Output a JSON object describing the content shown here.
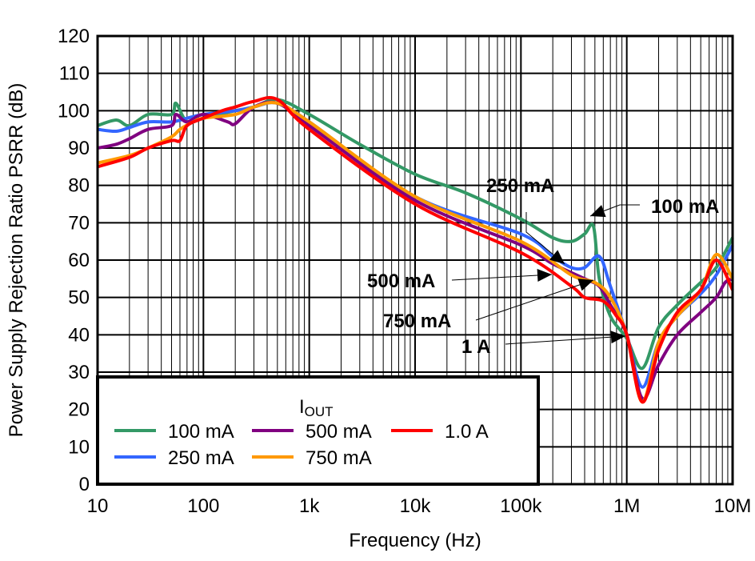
{
  "chart_data": {
    "type": "line",
    "title": "",
    "xlabel": "Frequency (Hz)",
    "ylabel": "Power Supply Rejection Ratio PSRR (dB)",
    "xscale": "log",
    "xlim": [
      10,
      10000000
    ],
    "ylim": [
      0,
      120
    ],
    "grid": true,
    "xticks": [
      10,
      100,
      1000,
      10000,
      100000,
      1000000,
      10000000
    ],
    "xtick_labels": [
      "10",
      "100",
      "1k",
      "10k",
      "100k",
      "1M",
      "10M"
    ],
    "yticks": [
      0,
      10,
      20,
      30,
      40,
      50,
      60,
      70,
      80,
      90,
      100,
      110,
      120
    ],
    "ytick_labels": [
      "0",
      "10",
      "20",
      "30",
      "40",
      "50",
      "60",
      "70",
      "80",
      "90",
      "100",
      "110",
      "120"
    ],
    "legend": {
      "title_main": "I",
      "title_sub": "OUT",
      "placement": "bottom-left"
    },
    "series": [
      {
        "name": "100 mA",
        "color": "#339966",
        "x": [
          10,
          15,
          20,
          30,
          50,
          55,
          70,
          100,
          200,
          300,
          500,
          1000,
          3000,
          10000,
          30000,
          100000,
          200000,
          300000,
          400000,
          485000,
          550000,
          700000,
          1000000,
          1400000,
          2000000,
          3000000,
          5000000,
          7000000,
          10000000
        ],
        "y": [
          96,
          97.5,
          96,
          99,
          99,
          102,
          97,
          98,
          100,
          101,
          103,
          99,
          91,
          83,
          78,
          71,
          66,
          65,
          67,
          69,
          55,
          45,
          39,
          31,
          42,
          48,
          54,
          58,
          66
        ]
      },
      {
        "name": "250 mA",
        "color": "#3366ff",
        "x": [
          10,
          15,
          20,
          30,
          50,
          70,
          100,
          200,
          300,
          500,
          1000,
          10000,
          100000,
          200000,
          300000,
          400000,
          550000,
          700000,
          1000000,
          1400000,
          2000000,
          3000000,
          5000000,
          7000000,
          10000000
        ],
        "y": [
          95,
          94.5,
          95.5,
          97,
          97,
          98,
          99,
          100,
          101,
          102,
          97,
          77,
          67,
          61,
          58,
          58,
          61,
          53,
          40,
          26,
          38,
          45,
          51,
          56,
          64
        ]
      },
      {
        "name": "500 mA",
        "color": "#800080",
        "x": [
          10,
          15,
          20,
          30,
          50,
          55,
          70,
          100,
          170,
          200,
          300,
          500,
          1000,
          10000,
          100000,
          200000,
          400000,
          550000,
          700000,
          1000000,
          1400000,
          2000000,
          3000000,
          5000000,
          7000000,
          8500000,
          10000000
        ],
        "y": [
          90,
          91,
          92.5,
          95,
          96,
          99,
          97,
          99,
          97,
          96.5,
          101,
          102,
          96,
          76,
          64,
          59,
          55,
          53,
          48,
          40,
          23,
          32,
          40,
          46,
          50,
          54,
          55
        ]
      },
      {
        "name": "750 mA",
        "color": "#ff9900",
        "x": [
          10,
          20,
          30,
          50,
          60,
          80,
          100,
          200,
          300,
          500,
          1000,
          10000,
          100000,
          300000,
          500000,
          700000,
          1000000,
          1400000,
          2000000,
          3000000,
          5000000,
          7000000,
          10000000
        ],
        "y": [
          86,
          88,
          90,
          93,
          95,
          97,
          98,
          99,
          101,
          102,
          97,
          77,
          65,
          56,
          54,
          50,
          40,
          22,
          38,
          45,
          52,
          61.5,
          55
        ]
      },
      {
        "name": "1.0 A",
        "color": "#ff0000",
        "x": [
          10,
          20,
          30,
          50,
          60,
          70,
          100,
          150,
          200,
          300,
          500,
          1000,
          10000,
          100000,
          300000,
          400000,
          600000,
          800000,
          1000000,
          1400000,
          2000000,
          3000000,
          5000000,
          7000000,
          10000000
        ],
        "y": [
          85,
          87.5,
          90,
          92,
          92,
          96,
          98,
          100,
          101,
          102.5,
          103,
          95,
          75,
          62,
          53,
          50,
          49,
          45,
          40,
          22,
          36,
          46,
          52,
          60,
          52
        ]
      }
    ],
    "annotations": [
      {
        "text": "250 mA",
        "series": "250 mA"
      },
      {
        "text": "100 mA",
        "series": "100 mA"
      },
      {
        "text": "500 mA",
        "series": "500 mA"
      },
      {
        "text": "750 mA",
        "series": "750 mA"
      },
      {
        "text": "1 A",
        "series": "1.0 A"
      }
    ]
  }
}
